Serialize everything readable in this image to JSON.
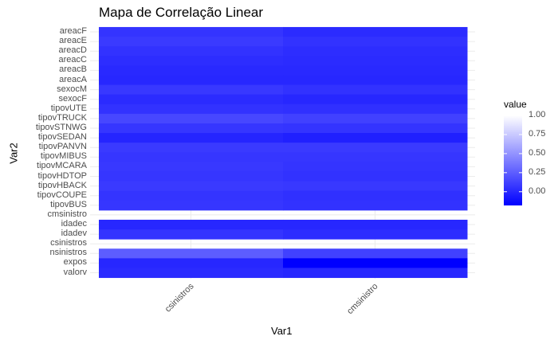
{
  "chart_data": {
    "type": "heatmap",
    "title": "Mapa de Correlação Linear",
    "xlabel": "Var1",
    "ylabel": "Var2",
    "x_categories": [
      "csinistros",
      "cmsinistro"
    ],
    "y_categories": [
      "areacF",
      "areacE",
      "areacD",
      "areacC",
      "areacB",
      "areacA",
      "sexocM",
      "sexocF",
      "tipovUTE",
      "tipovTRUCK",
      "tipovSTNWG",
      "tipovSEDAN",
      "tipovPANVN",
      "tipovMIBUS",
      "tipovMCARA",
      "tipovHDTOP",
      "tipovHBACK",
      "tipovCOUPE",
      "tipovBUS",
      "cmsinistro",
      "idadec",
      "idadev",
      "csinistros",
      "nsinistros",
      "expos",
      "valorv"
    ],
    "values": [
      [
        0.06,
        0.02
      ],
      [
        0.09,
        0.05
      ],
      [
        0.05,
        0.03
      ],
      [
        0.03,
        0.02
      ],
      [
        0.01,
        0.01
      ],
      [
        0.0,
        0.0
      ],
      [
        0.08,
        0.05
      ],
      [
        0.02,
        0.0
      ],
      [
        0.05,
        0.04
      ],
      [
        0.15,
        0.12
      ],
      [
        0.07,
        0.06
      ],
      [
        -0.01,
        -0.03
      ],
      [
        0.09,
        0.09
      ],
      [
        0.07,
        0.07
      ],
      [
        0.08,
        0.06
      ],
      [
        0.07,
        0.05
      ],
      [
        0.09,
        0.08
      ],
      [
        0.06,
        0.04
      ],
      [
        0.07,
        0.05
      ],
      [
        null,
        null
      ],
      [
        0.0,
        0.0
      ],
      [
        0.06,
        0.03
      ],
      [
        null,
        null
      ],
      [
        0.25,
        0.12
      ],
      [
        0.0,
        -0.18
      ],
      [
        0.02,
        0.0
      ]
    ],
    "legend": {
      "title": "value",
      "ticks": [
        1.0,
        0.75,
        0.5,
        0.25,
        0.0
      ],
      "tick_labels": [
        "1.00",
        "0.75",
        "0.50",
        "0.25",
        "0.00"
      ],
      "color_low": "#0000ff",
      "color_high": "#ffffff",
      "range": [
        -0.18,
        1.0
      ],
      "position": "right"
    },
    "grid": true
  }
}
